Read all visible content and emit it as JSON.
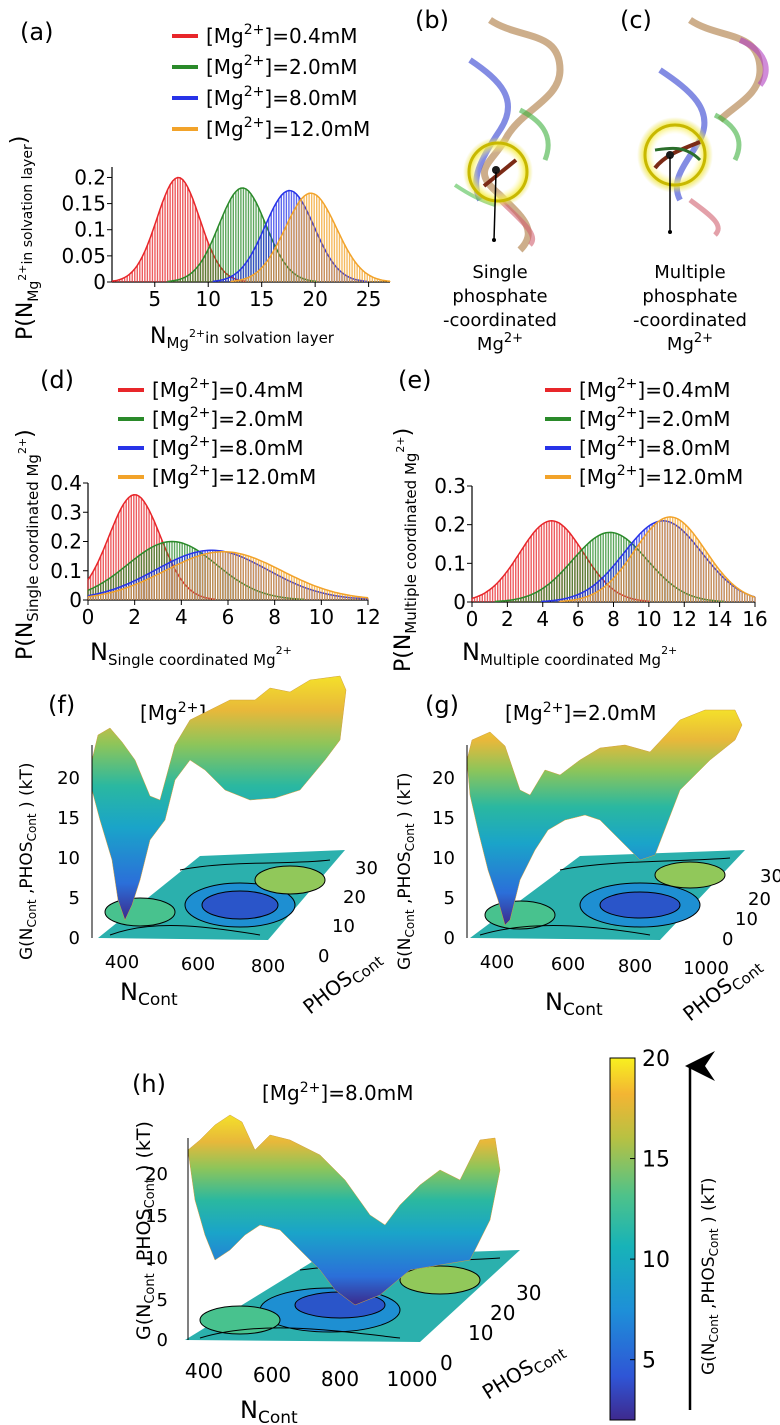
{
  "panels": {
    "a": "(a)",
    "b": "(b)",
    "c": "(c)",
    "d": "(d)",
    "e": "(e)",
    "f": "(f)",
    "g": "(g)",
    "h": "(h)"
  },
  "legend_entries": [
    "[Mg2+]=0.4mM",
    "[Mg2+]=2.0mM",
    "[Mg2+]=8.0mM",
    "[Mg2+]=12.0mM"
  ],
  "colors": {
    "s0": "#e8262a",
    "s1": "#2a8a2a",
    "s2": "#2733e8",
    "s3": "#f2a32a"
  },
  "structures": {
    "b_caption": [
      "Single",
      "phosphate",
      "-coordinated",
      "Mg2+"
    ],
    "c_caption": [
      "Multiple",
      "phosphate",
      "-coordinated",
      "Mg2+"
    ]
  },
  "surfaces": {
    "f_title": "[Mg2+]=0.4mM",
    "g_title": "[Mg2+]=2.0mM",
    "h_title": "[Mg2+]=8.0mM",
    "zlabel": "G(NCont ,PHOSCont ) (kT)",
    "xlabel": "NCont",
    "ylabel": "PHOSCont",
    "z_ticks": [
      "0",
      "5",
      "10",
      "15",
      "20"
    ],
    "f_x_ticks": [
      "400",
      "600",
      "800"
    ],
    "gh_x_ticks": [
      "400",
      "600",
      "800",
      "1000"
    ],
    "y_ticks": [
      "0",
      "10",
      "20",
      "30"
    ]
  },
  "colorbar": {
    "ticks": [
      "5",
      "10",
      "15",
      "20"
    ],
    "label": "G(NCont ,PHOSCont ) (kT)",
    "range": [
      2,
      20
    ]
  },
  "chart_data": [
    {
      "id": "a",
      "type": "bar",
      "title": "",
      "xlabel": "NMg2+in solvation layer",
      "ylabel": "P(NMg2+in solvation layer)",
      "xlim": [
        1,
        27
      ],
      "ylim": [
        0,
        0.22
      ],
      "x_ticks": [
        5,
        10,
        15,
        20,
        25
      ],
      "y_ticks": [
        0,
        0.05,
        0.1,
        0.15,
        0.2
      ],
      "y_tick_labels": [
        "0",
        "0.05",
        "0.1",
        "0.15",
        "0.2"
      ],
      "legend": "top",
      "series": [
        {
          "name": "[Mg2+]=0.4mM",
          "mean": 7.2,
          "sd": 2.0,
          "peak": 0.2
        },
        {
          "name": "[Mg2+]=2.0mM",
          "mean": 13.2,
          "sd": 2.2,
          "peak": 0.18
        },
        {
          "name": "[Mg2+]=8.0mM",
          "mean": 17.6,
          "sd": 2.3,
          "peak": 0.175
        },
        {
          "name": "[Mg2+]=12.0mM",
          "mean": 19.6,
          "sd": 2.4,
          "peak": 0.17
        }
      ]
    },
    {
      "id": "d",
      "type": "bar",
      "title": "",
      "xlabel": "NSingle coordinated Mg2+",
      "ylabel": "P(NSingle coordinated Mg2+)",
      "xlim": [
        0,
        12
      ],
      "ylim": [
        0,
        0.4
      ],
      "x_ticks": [
        0,
        2,
        4,
        6,
        8,
        10,
        12
      ],
      "y_ticks": [
        0,
        0.1,
        0.2,
        0.3,
        0.4
      ],
      "y_tick_labels": [
        "0",
        "0.1",
        "0.2",
        "0.3",
        "0.4"
      ],
      "legend": "top",
      "series": [
        {
          "name": "[Mg2+]=0.4mM",
          "mean": 2.0,
          "sd": 1.1,
          "peak": 0.36
        },
        {
          "name": "[Mg2+]=2.0mM",
          "mean": 3.6,
          "sd": 1.9,
          "peak": 0.2
        },
        {
          "name": "[Mg2+]=8.0mM",
          "mean": 5.3,
          "sd": 2.4,
          "peak": 0.17
        },
        {
          "name": "[Mg2+]=12.0mM",
          "mean": 5.8,
          "sd": 2.5,
          "peak": 0.165
        }
      ]
    },
    {
      "id": "e",
      "type": "bar",
      "title": "",
      "xlabel": "NMultiple coordinated Mg2+",
      "ylabel": "P(NMultiple coordinated Mg2+)",
      "xlim": [
        0,
        16
      ],
      "ylim": [
        0,
        0.3
      ],
      "x_ticks": [
        0,
        2,
        4,
        6,
        8,
        10,
        12,
        14,
        16
      ],
      "y_ticks": [
        0,
        0.1,
        0.2,
        0.3
      ],
      "y_tick_labels": [
        "0",
        "0.1",
        "0.2",
        "0.3"
      ],
      "legend": "top",
      "series": [
        {
          "name": "[Mg2+]=0.4mM",
          "mean": 4.5,
          "sd": 1.8,
          "peak": 0.21
        },
        {
          "name": "[Mg2+]=2.0mM",
          "mean": 7.8,
          "sd": 2.1,
          "peak": 0.18
        },
        {
          "name": "[Mg2+]=8.0mM",
          "mean": 10.8,
          "sd": 2.2,
          "peak": 0.21
        },
        {
          "name": "[Mg2+]=12.0mM",
          "mean": 11.2,
          "sd": 2.0,
          "peak": 0.22
        }
      ]
    }
  ]
}
